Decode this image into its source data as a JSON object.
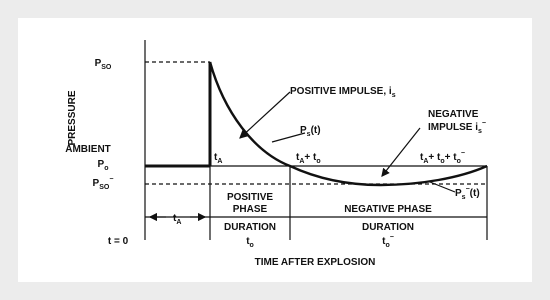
{
  "labels": {
    "pressure": [
      {
        "text": "PRESSURE"
      }
    ],
    "ambient": [
      {
        "text": "AMBIENT"
      }
    ],
    "p_so": [
      {
        "text": "P"
      },
      {
        "sub": "SO"
      }
    ],
    "p_o": [
      {
        "text": "P"
      },
      {
        "sub": "o"
      }
    ],
    "p_so_neg": [
      {
        "text": "P"
      },
      {
        "sub": "SO"
      },
      {
        "sup": "−"
      }
    ],
    "t_a_point": [
      {
        "text": "t"
      },
      {
        "sub": "A"
      }
    ],
    "t_a_plus_to": [
      {
        "text": "t"
      },
      {
        "sub": "A"
      },
      {
        "text": "+ t"
      },
      {
        "sub": "o"
      }
    ],
    "t_end": [
      {
        "text": "t"
      },
      {
        "sub": "A"
      },
      {
        "text": "+ t"
      },
      {
        "sub": "o"
      },
      {
        "text": "+ t"
      },
      {
        "sub": "o"
      },
      {
        "sup": "−"
      }
    ],
    "positive_impulse": [
      {
        "text": "POSITIVE IMPULSE, i"
      },
      {
        "sub": "s"
      }
    ],
    "ps_t": [
      {
        "text": "P"
      },
      {
        "sub": "s"
      },
      {
        "text": "(t)"
      }
    ],
    "negative_impulse_1": [
      {
        "text": "NEGATIVE"
      }
    ],
    "negative_impulse_2": [
      {
        "text": "IMPULSE i"
      },
      {
        "sub": "s"
      },
      {
        "sup": "−"
      }
    ],
    "ps_neg_t": [
      {
        "text": "P"
      },
      {
        "sub": "s"
      },
      {
        "sup": "−"
      },
      {
        "text": "(t)"
      }
    ],
    "t_zero": [
      {
        "text": "t = 0"
      }
    ],
    "t_a_duration": [
      {
        "text": "t"
      },
      {
        "sub": "A"
      }
    ],
    "positive_phase_1": [
      {
        "text": "POSITIVE"
      }
    ],
    "positive_phase_2": [
      {
        "text": "PHASE"
      }
    ],
    "negative_phase": [
      {
        "text": "NEGATIVE PHASE"
      }
    ],
    "duration_pos": [
      {
        "text": "DURATION"
      }
    ],
    "to_pos": [
      {
        "text": "t"
      },
      {
        "sub": "o"
      }
    ],
    "duration_neg": [
      {
        "text": "DURATION"
      }
    ],
    "to_neg": [
      {
        "text": "t"
      },
      {
        "sub": "o"
      },
      {
        "sup": "−"
      }
    ],
    "x_axis": [
      {
        "text": "TIME AFTER EXPLOSION"
      }
    ]
  }
}
